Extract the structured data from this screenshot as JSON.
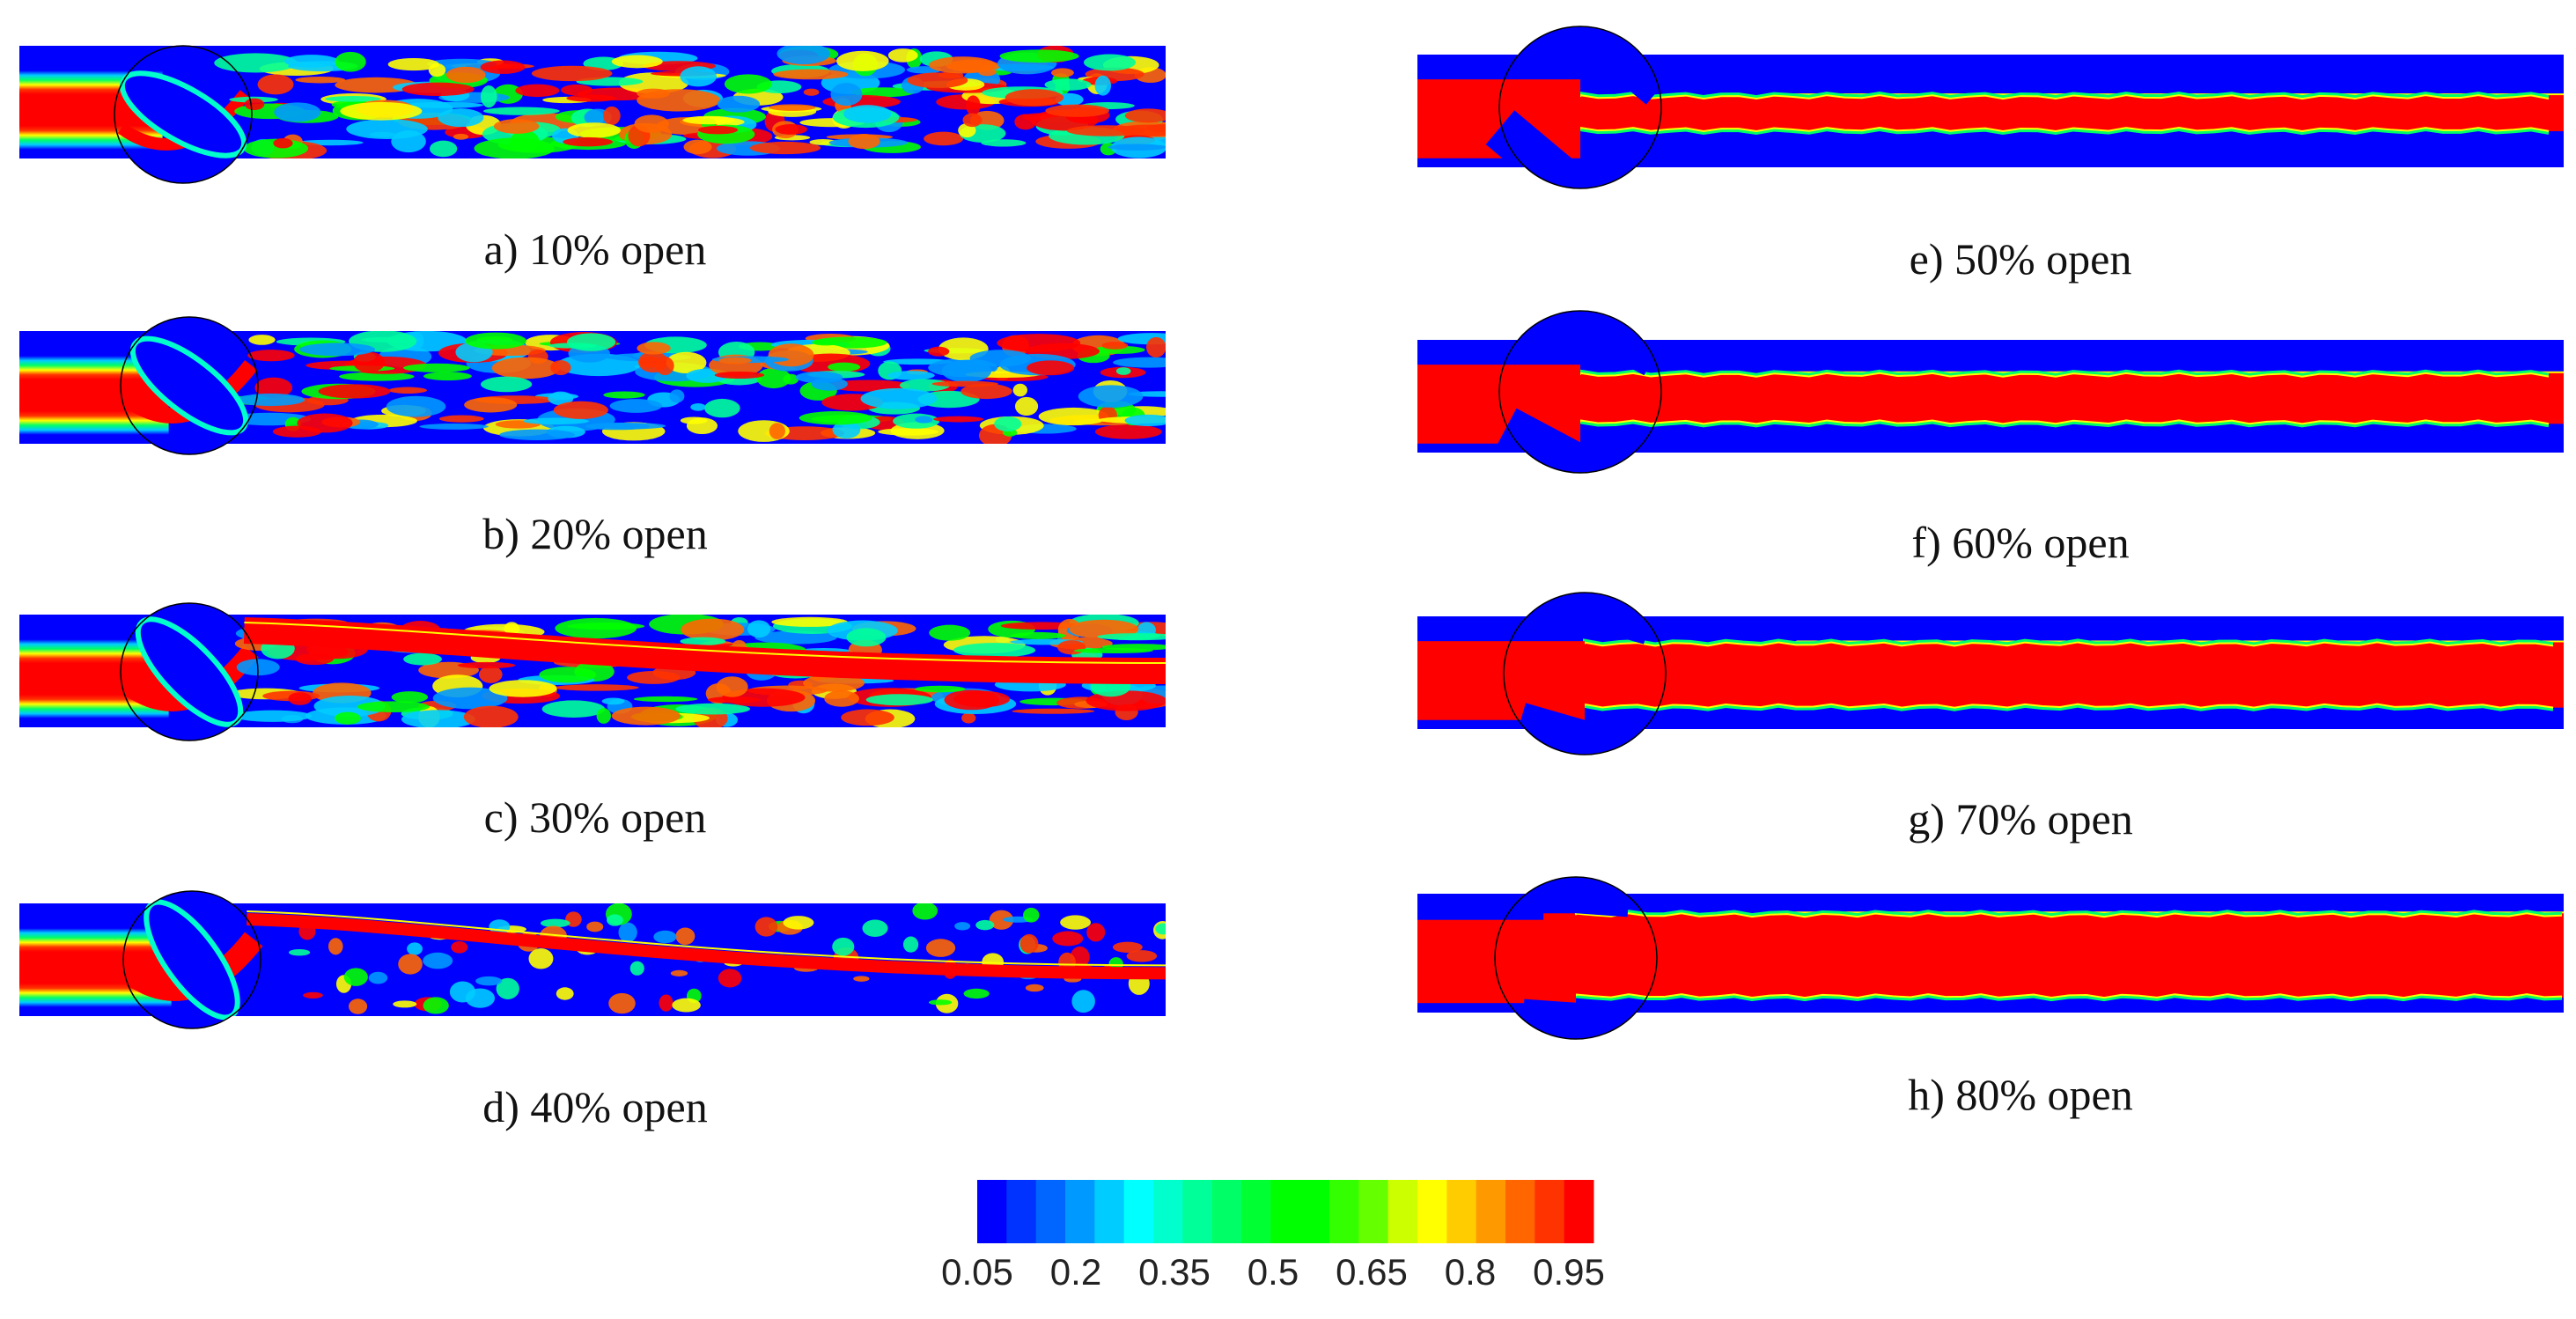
{
  "panels": [
    {
      "caption": "a) 10% open",
      "opening_percent": 10
    },
    {
      "caption": "b) 20% open",
      "opening_percent": 20
    },
    {
      "caption": "c) 30% open",
      "opening_percent": 30
    },
    {
      "caption": "d) 40% open",
      "opening_percent": 40
    },
    {
      "caption": "e) 50% open",
      "opening_percent": 50
    },
    {
      "caption": "f) 60% open",
      "opening_percent": 60
    },
    {
      "caption": "g) 70% open",
      "opening_percent": 70
    },
    {
      "caption": "h) 80% open",
      "opening_percent": 80
    }
  ],
  "colorbar": {
    "tick_labels": [
      "0.05",
      "0.2",
      "0.35",
      "0.5",
      "0.65",
      "0.8",
      "0.95"
    ],
    "band_colors": [
      "#0000ff",
      "#0033ff",
      "#0066ff",
      "#0099ff",
      "#00ccff",
      "#00ffff",
      "#00ffcc",
      "#00ff99",
      "#00ff66",
      "#00ff33",
      "#00ff00",
      "#00ff00",
      "#33ff00",
      "#66ff00",
      "#ccff00",
      "#ffff00",
      "#ffcc00",
      "#ff9900",
      "#ff6600",
      "#ff3300",
      "#ff0000"
    ]
  },
  "colors": {
    "low": "#0000ff",
    "high": "#ff0000",
    "mid": "#00ff00",
    "outline": "#000000"
  }
}
